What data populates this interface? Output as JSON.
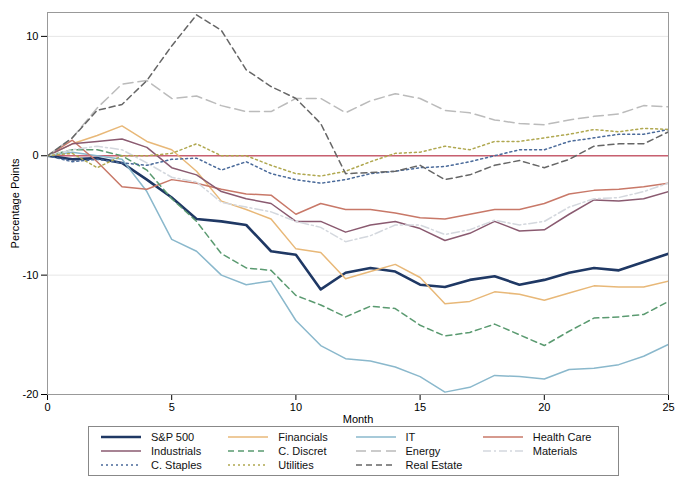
{
  "chart_data": {
    "type": "line",
    "x_label": "Month",
    "y_label": "Percentage Points",
    "x": [
      0,
      1,
      2,
      3,
      4,
      5,
      6,
      7,
      8,
      9,
      10,
      11,
      12,
      13,
      14,
      15,
      16,
      17,
      18,
      19,
      20,
      21,
      22,
      23,
      24,
      25
    ],
    "xlim": [
      0,
      25
    ],
    "xticks": [
      0,
      5,
      10,
      15,
      20,
      25
    ],
    "ylim": [
      -20,
      12
    ],
    "yticks": [
      -20,
      -10,
      0,
      10
    ],
    "grid": true,
    "legend": "bottom",
    "series": [
      {
        "name": "S&P 500",
        "color": "#1f3864",
        "line_style": "solid",
        "values": [
          0,
          -0.3,
          -0.2,
          -0.6,
          -2,
          -3.5,
          -5.3,
          -5.5,
          -5.8,
          -8,
          -8.3,
          -11.2,
          -9.8,
          -9.4,
          -9.7,
          -10.8,
          -11,
          -10.4,
          -10.1,
          -10.8,
          -10.4,
          -9.8,
          -9.4,
          -9.6,
          -8.9,
          -8.2
        ]
      },
      {
        "name": "Financials",
        "color": "#e8b878",
        "line_style": "solid",
        "values": [
          0,
          1,
          1.7,
          2.5,
          1.2,
          0.5,
          -1.3,
          -3.8,
          -4.5,
          -5.3,
          -7.8,
          -8.1,
          -10.3,
          -9.7,
          -9.1,
          -10.2,
          -12.4,
          -12.2,
          -11.4,
          -11.6,
          -12.1,
          -11.5,
          -10.9,
          -11,
          -11,
          -10.5
        ]
      },
      {
        "name": "IT",
        "color": "#8ab8cc",
        "line_style": "solid",
        "values": [
          0,
          0.3,
          0,
          -0.3,
          -3,
          -7,
          -8,
          -10,
          -10.8,
          -10.5,
          -13.8,
          -15.9,
          -17,
          -17.2,
          -17.7,
          -18.5,
          -19.8,
          -19.4,
          -18.4,
          -18.5,
          -18.7,
          -17.9,
          -17.8,
          -17.5,
          -16.8,
          -15.8
        ]
      },
      {
        "name": "Health Care",
        "color": "#c87868",
        "line_style": "solid",
        "values": [
          0,
          1.3,
          -0.5,
          -2.6,
          -2.8,
          -2,
          -2.3,
          -2.8,
          -3.2,
          -3.3,
          -4.9,
          -4,
          -4.5,
          -4.5,
          -4.8,
          -5.2,
          -5.3,
          -4.9,
          -4.5,
          -4.5,
          -4,
          -3.2,
          -2.9,
          -2.8,
          -2.6,
          -2.3
        ]
      },
      {
        "name": "Industrials",
        "color": "#8a5a70",
        "line_style": "solid",
        "values": [
          0,
          1,
          1.2,
          1.4,
          0.7,
          -1,
          -1.6,
          -3,
          -3.6,
          -4,
          -5.5,
          -5.5,
          -6.4,
          -5.8,
          -5.5,
          -6.1,
          -7.1,
          -6.5,
          -5.5,
          -6.3,
          -6.2,
          -4.9,
          -3.7,
          -3.8,
          -3.6,
          -3
        ]
      },
      {
        "name": "C. Discret",
        "color": "#5a9a70",
        "line_style": "dashed",
        "values": [
          0,
          0.5,
          0.5,
          0,
          -1.2,
          -3.6,
          -5.5,
          -8.2,
          -9.4,
          -9.6,
          -11.7,
          -12.5,
          -13.5,
          -12.6,
          -12.8,
          -14.2,
          -15.1,
          -14.8,
          -14.1,
          -15,
          -15.9,
          -14.7,
          -13.6,
          -13.5,
          -13.3,
          -12.2
        ]
      },
      {
        "name": "Energy",
        "color": "#bbbbbb",
        "line_style": "longdash",
        "values": [
          0,
          1.5,
          4,
          6,
          6.3,
          4.8,
          5,
          4.2,
          3.7,
          3.7,
          4.8,
          4.8,
          3.6,
          4.6,
          5.2,
          4.8,
          3.8,
          3.6,
          3,
          2.7,
          2.6,
          3,
          3.3,
          3.5,
          4.2,
          4.1
        ]
      },
      {
        "name": "Materials",
        "color": "#d4d8de",
        "line_style": "dashdot",
        "values": [
          0,
          0.5,
          0.8,
          0.5,
          -0.6,
          -1.8,
          -2.2,
          -3.9,
          -4.3,
          -4.7,
          -5.5,
          -6,
          -7.2,
          -6.7,
          -5.8,
          -5.8,
          -6.6,
          -6.2,
          -5.4,
          -5.8,
          -5.5,
          -4.3,
          -3.6,
          -3.5,
          -3,
          -2.3
        ]
      },
      {
        "name": "C. Staples",
        "color": "#4a6a9a",
        "line_style": "dotted",
        "values": [
          0,
          -0.5,
          -0.3,
          -0.6,
          -0.8,
          -0.3,
          -0.2,
          -1.2,
          -0.5,
          -1.5,
          -2,
          -2.3,
          -2,
          -1.5,
          -1.3,
          -1,
          -0.9,
          -0.5,
          0,
          0.5,
          0.5,
          1.2,
          1.5,
          1.8,
          1.8,
          2.2
        ]
      },
      {
        "name": "Utilities",
        "color": "#b0a850",
        "line_style": "dotted",
        "values": [
          0,
          0.2,
          -1,
          0,
          0,
          0.2,
          1,
          0,
          0,
          -0.8,
          -1.5,
          -1.7,
          -1.3,
          -0.5,
          0.2,
          0.3,
          0.8,
          0.5,
          1.2,
          1.2,
          1.5,
          1.8,
          2.2,
          2,
          2.3,
          2.2
        ]
      },
      {
        "name": "Real Estate",
        "color": "#666666",
        "line_style": "dashed",
        "values": [
          0,
          1.5,
          3.8,
          4.3,
          6.3,
          9.2,
          11.8,
          10.5,
          7.2,
          5.8,
          4.8,
          2.7,
          -1.5,
          -1.4,
          -1.3,
          -0.8,
          -2,
          -1.6,
          -0.8,
          -0.4,
          -1,
          -0.3,
          0.8,
          1,
          1,
          2
        ]
      }
    ]
  }
}
